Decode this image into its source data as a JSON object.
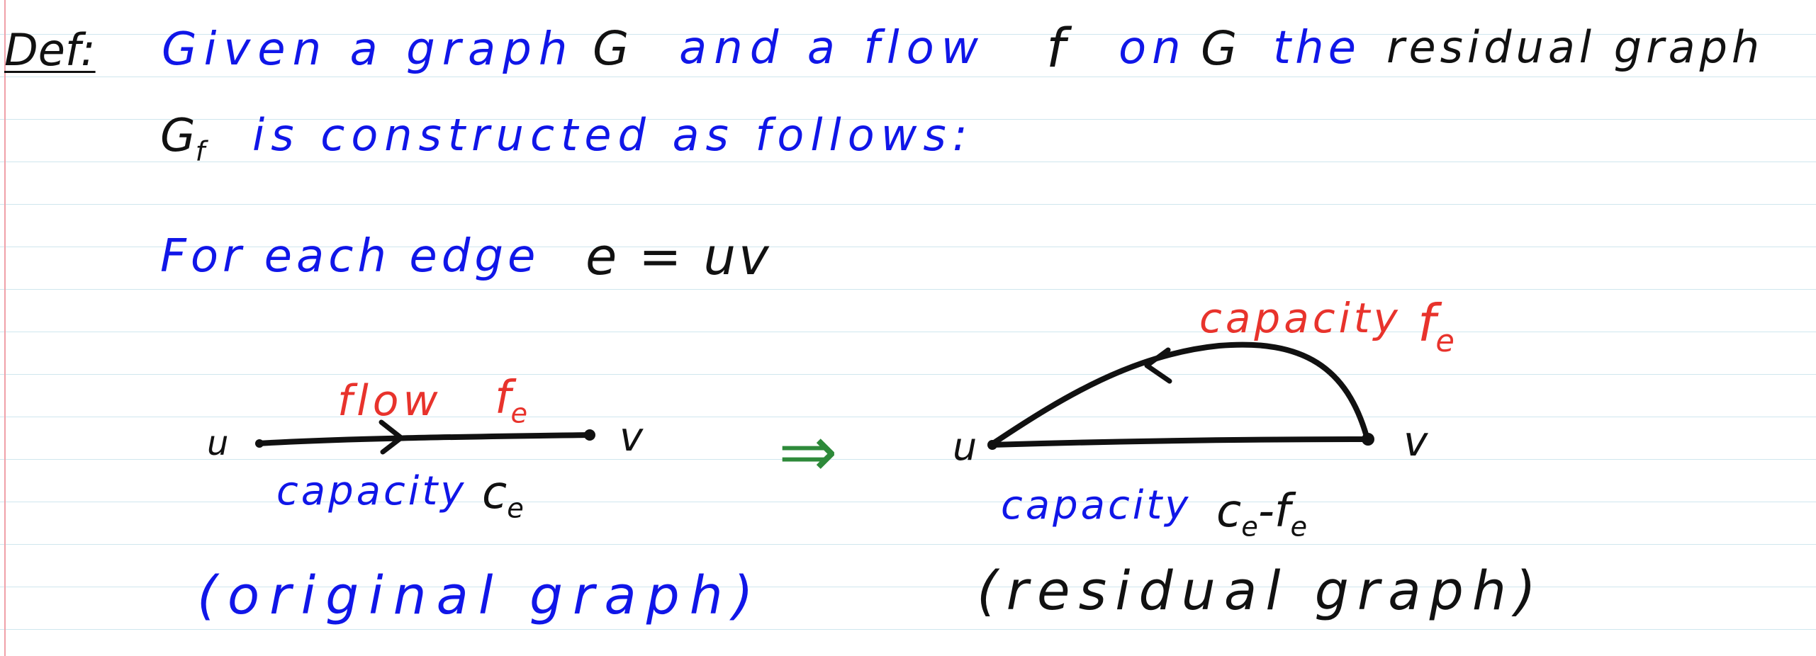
{
  "heading": {
    "label": "Def:",
    "line1_blue_a": "Given a graph",
    "line1_black_a": "G",
    "line1_blue_b": "and a flow",
    "line1_black_b": "f",
    "line1_blue_c": "on",
    "line1_black_c": "G",
    "line1_blue_d": "the",
    "line1_black_d": "residual graph",
    "line2_black": "G",
    "line2_sub": "f",
    "line2_blue": "is constructed as follows:"
  },
  "edge_line": {
    "prefix": "For each edge",
    "expression": "e = uv"
  },
  "original": {
    "flow_label": "flow",
    "flow_var": "f",
    "flow_sub": "e",
    "node_u": "u",
    "node_v": "v",
    "capacity_label": "capacity",
    "capacity_var": "c",
    "capacity_sub": "e",
    "caption": "(original graph)"
  },
  "implies_symbol": "⇒",
  "residual": {
    "back_label": "capacity",
    "back_var": "f",
    "back_sub": "e",
    "node_u": "u",
    "node_v": "v",
    "capacity_label": "capacity",
    "capacity_expr": "c",
    "capacity_sub1": "e",
    "capacity_minus": "-",
    "capacity_f": "f",
    "capacity_sub2": "e",
    "caption": "(residual graph)"
  },
  "colors": {
    "ink_blue": "#1016e8",
    "ink_black": "#111111",
    "ink_red": "#e8332c",
    "ink_green": "#2e8a3a",
    "rule": "#cfe6ee",
    "margin": "#f0a0a8"
  }
}
